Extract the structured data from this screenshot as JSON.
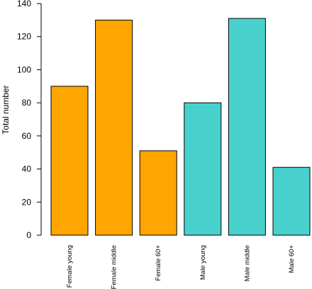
{
  "chart_data": {
    "type": "bar",
    "title": "",
    "xlabel": "",
    "ylabel": "Total number",
    "ylim": [
      0,
      140
    ],
    "yticks": [
      0,
      20,
      40,
      60,
      80,
      100,
      120,
      140
    ],
    "grid": false,
    "legend": "none",
    "categories": [
      "Female young",
      "Female middle",
      "Female 60+",
      "Male young",
      "Male middle",
      "Male 60+"
    ],
    "values": [
      90,
      130,
      51,
      80,
      131,
      41
    ],
    "colors": [
      "#FFA500",
      "#FFA500",
      "#FFA500",
      "#48D1CC",
      "#48D1CC",
      "#48D1CC"
    ],
    "bar_border_color": "#000000"
  }
}
